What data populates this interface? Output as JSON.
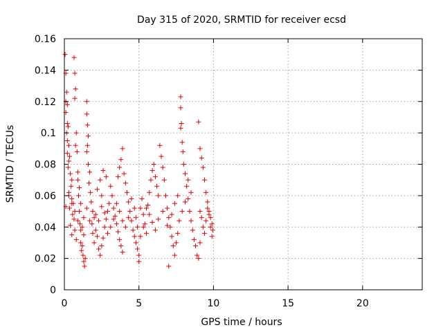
{
  "chart_data": {
    "type": "scatter",
    "title": "Day 315 of 2020, SRMTID for receiver ecsd",
    "xlabel": "GPS time / hours",
    "ylabel": "SRMTID / TECUs",
    "xlim": [
      0,
      24
    ],
    "ylim": [
      0,
      0.16
    ],
    "x_ticks": [
      0,
      5,
      10,
      15,
      20
    ],
    "x_tick_labels": [
      "0",
      "5",
      "10",
      "15",
      "20"
    ],
    "y_ticks": [
      0,
      0.02,
      0.04,
      0.06,
      0.08,
      0.1,
      0.12,
      0.14,
      0.16
    ],
    "y_tick_labels": [
      "0",
      "0.02",
      "0.04",
      "0.06",
      "0.08",
      "0.1",
      "0.12",
      "0.14",
      "0.16"
    ],
    "grid": true,
    "marker": "plus",
    "series": [
      {
        "color": "#e00000",
        "points": [
          [
            0.05,
            0.15
          ],
          [
            0.1,
            0.138
          ],
          [
            0.15,
            0.126
          ],
          [
            0.1,
            0.12
          ],
          [
            0.2,
            0.118
          ],
          [
            0.1,
            0.113
          ],
          [
            0.2,
            0.106
          ],
          [
            0.25,
            0.104
          ],
          [
            0.15,
            0.1
          ],
          [
            0.2,
            0.095
          ],
          [
            0.3,
            0.092
          ],
          [
            0.2,
            0.087
          ],
          [
            0.35,
            0.085
          ],
          [
            0.3,
            0.082
          ],
          [
            0.25,
            0.078
          ],
          [
            0.4,
            0.074
          ],
          [
            0.5,
            0.07
          ],
          [
            0.45,
            0.066
          ],
          [
            0.3,
            0.062
          ],
          [
            0.5,
            0.058
          ],
          [
            0.6,
            0.055
          ],
          [
            0.35,
            0.052
          ],
          [
            0.55,
            0.048
          ],
          [
            0.65,
            0.045
          ],
          [
            0.4,
            0.041
          ],
          [
            0.7,
            0.038
          ],
          [
            0.5,
            0.035
          ],
          [
            0.8,
            0.032
          ],
          [
            0.65,
            0.148
          ],
          [
            0.7,
            0.138
          ],
          [
            0.75,
            0.128
          ],
          [
            0.7,
            0.122
          ],
          [
            0.8,
            0.1
          ],
          [
            0.75,
            0.092
          ],
          [
            0.85,
            0.088
          ],
          [
            0.9,
            0.075
          ],
          [
            0.95,
            0.06
          ],
          [
            1.0,
            0.05
          ],
          [
            1.05,
            0.042
          ],
          [
            1.1,
            0.03
          ],
          [
            1.15,
            0.025
          ],
          [
            1.2,
            0.028
          ],
          [
            1.25,
            0.022
          ],
          [
            1.3,
            0.018
          ],
          [
            1.35,
            0.015
          ],
          [
            1.4,
            0.02
          ],
          [
            1.3,
            0.035
          ],
          [
            1.2,
            0.04
          ],
          [
            1.1,
            0.055
          ],
          [
            1.0,
            0.065
          ],
          [
            0.9,
            0.07
          ],
          [
            1.5,
            0.12
          ],
          [
            1.5,
            0.112
          ],
          [
            1.55,
            0.105
          ],
          [
            1.6,
            0.098
          ],
          [
            1.55,
            0.092
          ],
          [
            1.5,
            0.088
          ],
          [
            1.6,
            0.08
          ],
          [
            1.7,
            0.075
          ],
          [
            1.65,
            0.068
          ],
          [
            1.75,
            0.062
          ],
          [
            1.8,
            0.056
          ],
          [
            1.9,
            0.05
          ],
          [
            2.0,
            0.046
          ],
          [
            1.85,
            0.042
          ],
          [
            2.1,
            0.038
          ],
          [
            2.2,
            0.034
          ],
          [
            2.0,
            0.03
          ],
          [
            2.3,
            0.026
          ],
          [
            2.4,
            0.022
          ],
          [
            2.5,
            0.028
          ],
          [
            2.6,
            0.033
          ],
          [
            2.7,
            0.04
          ],
          [
            2.8,
            0.045
          ],
          [
            2.9,
            0.05
          ],
          [
            3.0,
            0.055
          ],
          [
            2.5,
            0.06
          ],
          [
            2.2,
            0.064
          ],
          [
            2.4,
            0.07
          ],
          [
            2.6,
            0.076
          ],
          [
            2.8,
            0.072
          ],
          [
            3.1,
            0.066
          ],
          [
            3.2,
            0.06
          ],
          [
            3.3,
            0.052
          ],
          [
            3.4,
            0.047
          ],
          [
            3.5,
            0.042
          ],
          [
            3.6,
            0.037
          ],
          [
            3.7,
            0.032
          ],
          [
            3.8,
            0.028
          ],
          [
            3.9,
            0.024
          ],
          [
            3.6,
            0.072
          ],
          [
            3.7,
            0.078
          ],
          [
            3.8,
            0.083
          ],
          [
            3.9,
            0.09
          ],
          [
            4.0,
            0.074
          ],
          [
            4.1,
            0.068
          ],
          [
            4.2,
            0.062
          ],
          [
            4.3,
            0.056
          ],
          [
            4.4,
            0.05
          ],
          [
            4.5,
            0.044
          ],
          [
            4.6,
            0.038
          ],
          [
            4.7,
            0.034
          ],
          [
            4.8,
            0.03
          ],
          [
            4.9,
            0.026
          ],
          [
            5.0,
            0.022
          ],
          [
            5.0,
            0.018
          ],
          [
            4.9,
            0.04
          ],
          [
            4.8,
            0.046
          ],
          [
            5.1,
            0.052
          ],
          [
            5.2,
            0.058
          ],
          [
            5.3,
            0.048
          ],
          [
            5.4,
            0.042
          ],
          [
            5.5,
            0.036
          ],
          [
            5.6,
            0.054
          ],
          [
            5.7,
            0.062
          ],
          [
            5.8,
            0.07
          ],
          [
            5.9,
            0.076
          ],
          [
            6.0,
            0.08
          ],
          [
            6.1,
            0.072
          ],
          [
            6.2,
            0.066
          ],
          [
            6.3,
            0.06
          ],
          [
            6.4,
            0.092
          ],
          [
            6.5,
            0.085
          ],
          [
            6.6,
            0.078
          ],
          [
            6.7,
            0.07
          ],
          [
            6.8,
            0.06
          ],
          [
            6.9,
            0.052
          ],
          [
            7.0,
            0.046
          ],
          [
            7.1,
            0.04
          ],
          [
            7.2,
            0.034
          ],
          [
            7.3,
            0.028
          ],
          [
            7.4,
            0.022
          ],
          [
            7.0,
            0.015
          ],
          [
            7.5,
            0.03
          ],
          [
            7.6,
            0.036
          ],
          [
            7.7,
            0.044
          ],
          [
            7.8,
            0.123
          ],
          [
            7.8,
            0.116
          ],
          [
            7.85,
            0.106
          ],
          [
            7.8,
            0.103
          ],
          [
            7.9,
            0.094
          ],
          [
            7.95,
            0.088
          ],
          [
            8.0,
            0.08
          ],
          [
            8.1,
            0.074
          ],
          [
            8.2,
            0.066
          ],
          [
            8.3,
            0.058
          ],
          [
            8.4,
            0.05
          ],
          [
            8.5,
            0.044
          ],
          [
            8.6,
            0.038
          ],
          [
            8.7,
            0.032
          ],
          [
            8.8,
            0.028
          ],
          [
            8.9,
            0.022
          ],
          [
            9.0,
            0.02
          ],
          [
            9.1,
            0.03
          ],
          [
            9.0,
            0.107
          ],
          [
            9.1,
            0.09
          ],
          [
            9.2,
            0.084
          ],
          [
            9.3,
            0.078
          ],
          [
            9.4,
            0.07
          ],
          [
            9.5,
            0.062
          ],
          [
            9.6,
            0.056
          ],
          [
            9.7,
            0.05
          ],
          [
            9.8,
            0.046
          ],
          [
            9.9,
            0.042
          ],
          [
            9.95,
            0.038
          ],
          [
            9.9,
            0.034
          ],
          [
            9.8,
            0.04
          ],
          [
            9.7,
            0.048
          ],
          [
            9.6,
            0.052
          ],
          [
            9.5,
            0.044
          ],
          [
            9.4,
            0.036
          ],
          [
            9.3,
            0.04
          ],
          [
            9.2,
            0.046
          ],
          [
            9.1,
            0.05
          ],
          [
            8.5,
            0.062
          ],
          [
            8.3,
            0.07
          ],
          [
            8.1,
            0.056
          ],
          [
            7.9,
            0.05
          ],
          [
            7.6,
            0.06
          ],
          [
            7.4,
            0.055
          ],
          [
            7.2,
            0.048
          ],
          [
            6.9,
            0.041
          ],
          [
            6.6,
            0.05
          ],
          [
            6.3,
            0.045
          ],
          [
            6.1,
            0.038
          ],
          [
            5.9,
            0.043
          ],
          [
            5.7,
            0.048
          ],
          [
            5.5,
            0.052
          ],
          [
            5.3,
            0.04
          ],
          [
            5.1,
            0.034
          ],
          [
            4.7,
            0.052
          ],
          [
            4.5,
            0.058
          ],
          [
            4.3,
            0.046
          ],
          [
            4.1,
            0.04
          ],
          [
            3.9,
            0.044
          ],
          [
            3.7,
            0.05
          ],
          [
            3.5,
            0.055
          ],
          [
            3.3,
            0.045
          ],
          [
            3.1,
            0.04
          ],
          [
            2.9,
            0.036
          ],
          [
            2.7,
            0.049
          ],
          [
            2.5,
            0.053
          ],
          [
            2.3,
            0.044
          ],
          [
            2.1,
            0.048
          ],
          [
            1.9,
            0.036
          ],
          [
            1.7,
            0.044
          ],
          [
            1.5,
            0.052
          ],
          [
            1.3,
            0.046
          ],
          [
            1.1,
            0.038
          ],
          [
            0.9,
            0.044
          ],
          [
            0.7,
            0.05
          ],
          [
            0.5,
            0.055
          ],
          [
            0.3,
            0.06
          ],
          [
            0.1,
            0.053
          ]
        ]
      }
    ]
  }
}
